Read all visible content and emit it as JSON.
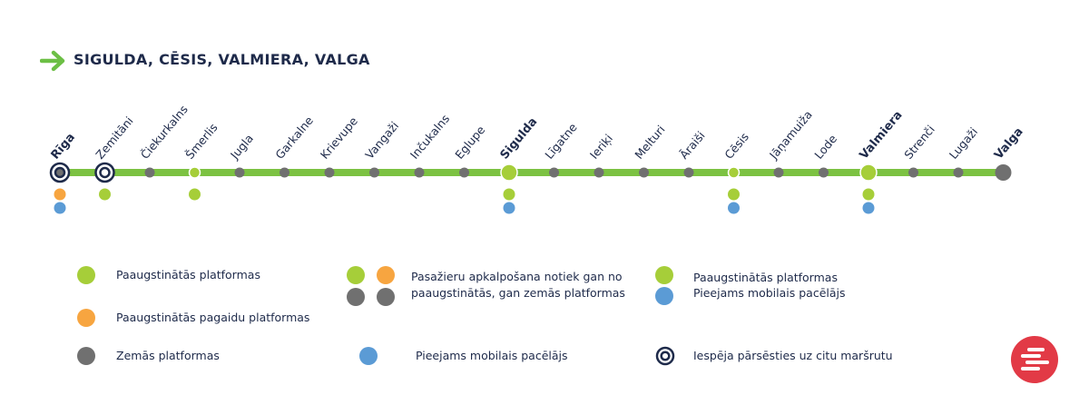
{
  "header": {
    "title": "SIGULDA, CĒSIS, VALMIERA, VALGA",
    "arrow_color": "#6cbf45"
  },
  "colors": {
    "line": "#7cc242",
    "green": "#a6ce39",
    "orange": "#f7a540",
    "gray": "#707070",
    "blue": "#5b9bd5",
    "navy": "#1e2a4a",
    "logo": "#e23a46"
  },
  "stations": [
    {
      "name": "Rīga",
      "major": true,
      "transfer": true,
      "platforms": [
        "orange",
        "blue"
      ]
    },
    {
      "name": "Zemitāni",
      "major": false,
      "transfer": true,
      "platforms": [
        "green"
      ]
    },
    {
      "name": "Čiekurkalns",
      "major": false,
      "transfer": false,
      "platforms": []
    },
    {
      "name": "Šmerlis",
      "major": false,
      "transfer": false,
      "platforms": [
        "green"
      ]
    },
    {
      "name": "Jugla",
      "major": false,
      "transfer": false,
      "platforms": []
    },
    {
      "name": "Garkalne",
      "major": false,
      "transfer": false,
      "platforms": []
    },
    {
      "name": "Krievupe",
      "major": false,
      "transfer": false,
      "platforms": []
    },
    {
      "name": "Vangaži",
      "major": false,
      "transfer": false,
      "platforms": []
    },
    {
      "name": "Inčukalns",
      "major": false,
      "transfer": false,
      "platforms": []
    },
    {
      "name": "Eglupe",
      "major": false,
      "transfer": false,
      "platforms": []
    },
    {
      "name": "Sigulda",
      "major": true,
      "transfer": false,
      "platforms": [
        "green",
        "blue"
      ]
    },
    {
      "name": "Līgatne",
      "major": false,
      "transfer": false,
      "platforms": []
    },
    {
      "name": "Ieriķi",
      "major": false,
      "transfer": false,
      "platforms": []
    },
    {
      "name": "Melturi",
      "major": false,
      "transfer": false,
      "platforms": []
    },
    {
      "name": "Āraiši",
      "major": false,
      "transfer": false,
      "platforms": []
    },
    {
      "name": "Cēsis",
      "major": false,
      "transfer": false,
      "platforms": [
        "green",
        "blue"
      ]
    },
    {
      "name": "Jāņamuiža",
      "major": false,
      "transfer": false,
      "platforms": []
    },
    {
      "name": "Lode",
      "major": false,
      "transfer": false,
      "platforms": []
    },
    {
      "name": "Valmiera",
      "major": true,
      "transfer": false,
      "platforms": [
        "green",
        "blue"
      ]
    },
    {
      "name": "Strenči",
      "major": false,
      "transfer": false,
      "platforms": []
    },
    {
      "name": "Lugaži",
      "major": false,
      "transfer": false,
      "platforms": []
    },
    {
      "name": "Valga",
      "major": true,
      "transfer": false,
      "platforms": []
    }
  ],
  "legend": {
    "raised_platforms": "Paaugstinātās platformas",
    "raised_partial_platforms": "Paaugstinātās pagaidu platformas",
    "low_platforms": "Zemās platformas",
    "mixed_line1": "Pasažieru apkalpošana notiek gan no",
    "mixed_line2": "paaugstinātās, gan zemās platformas",
    "mobile_lift": "Pieejams mobilais pacēlājs",
    "raised_platforms_2": "Paaugstinātās platformas",
    "mobile_lift_2": "Pieejams mobilais pacēlājs",
    "transfer": "Iespēja pārsēsties uz citu maršrutu"
  }
}
